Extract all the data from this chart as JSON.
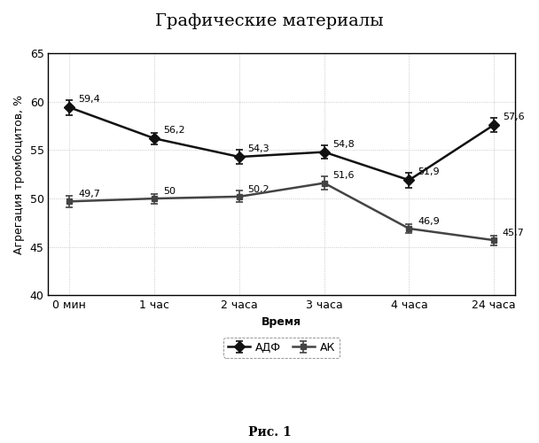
{
  "title": "Графические материалы",
  "subtitle": "Рис. 1",
  "xlabel": "Время",
  "ylabel": "Агрегация тромбоцитов, %",
  "x_labels": [
    "0 мин",
    "1 час",
    "2 часа",
    "3 часа",
    "4 часа",
    "24 часа"
  ],
  "adf_values": [
    59.4,
    56.2,
    54.3,
    54.8,
    51.9,
    57.6
  ],
  "ak_values": [
    49.7,
    50.0,
    50.2,
    51.6,
    46.9,
    45.7
  ],
  "adf_errors": [
    0.8,
    0.6,
    0.7,
    0.7,
    0.8,
    0.7
  ],
  "ak_errors": [
    0.6,
    0.5,
    0.6,
    0.7,
    0.5,
    0.5
  ],
  "adf_annots": [
    "59,4",
    "56,2",
    "54,3",
    "54,8",
    "51,9",
    "57,6"
  ],
  "ak_annots": [
    "49,7",
    "50",
    "50,2",
    "51,6",
    "46,9",
    "45,7"
  ],
  "ylim": [
    40,
    65
  ],
  "yticks": [
    40,
    45,
    50,
    55,
    60,
    65
  ],
  "adf_color": "#111111",
  "ak_color": "#444444",
  "legend_adf": "АДФ",
  "legend_ak": "АК",
  "background_color": "#ffffff",
  "plot_bg_color": "#ffffff",
  "grid_color": "#bbbbbb",
  "title_fontsize": 14,
  "label_fontsize": 9,
  "tick_fontsize": 9,
  "annot_fontsize": 8,
  "legend_fontsize": 9,
  "subtitle_fontsize": 10
}
